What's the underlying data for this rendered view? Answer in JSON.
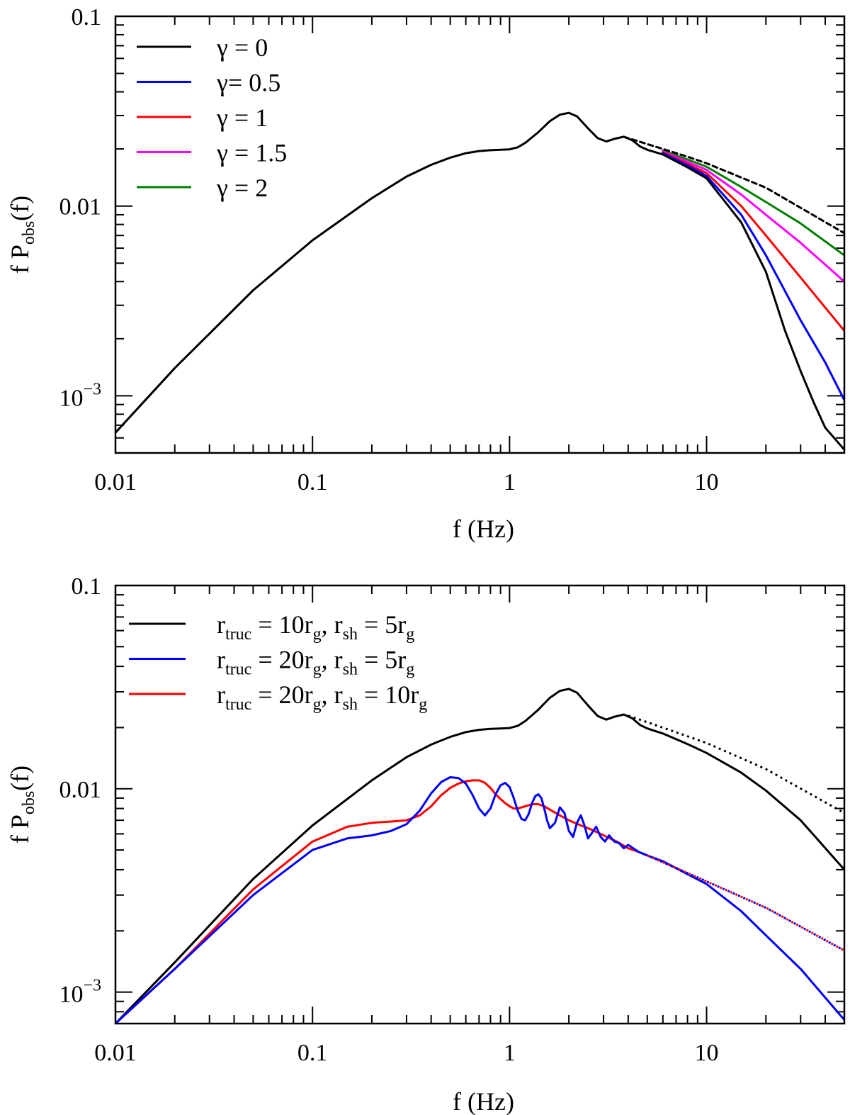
{
  "colors": {
    "black": "#000000",
    "blue": "#0000ff",
    "red": "#ff0000",
    "magenta": "#ff00ff",
    "green": "#008000",
    "blue_red": "#0000ff/#ff0000"
  },
  "chart_data": [
    {
      "type": "line",
      "title": "",
      "xscale": "log",
      "yscale": "log",
      "xlabel": "f (Hz)",
      "ylabel": "f P(f)",
      "ylabel_sub": "obs",
      "xlim": [
        0.01,
        50
      ],
      "ylim": [
        0.0005,
        0.1
      ],
      "xticks": [
        {
          "value": 0.01,
          "label": "0.01"
        },
        {
          "value": 0.1,
          "label": "0.1"
        },
        {
          "value": 1,
          "label": "1"
        },
        {
          "value": 10,
          "label": "10"
        }
      ],
      "yticks": [
        {
          "value": 0.001,
          "base": "10",
          "exp": "−3"
        },
        {
          "value": 0.01,
          "label": "0.01"
        },
        {
          "value": 0.1,
          "label": "0.1"
        }
      ],
      "legend_position": "top-left",
      "legend": [
        {
          "text": "γ = 0",
          "color": "#000000"
        },
        {
          "text": "γ= 0.5",
          "color": "#0000ff"
        },
        {
          "text": "γ = 1",
          "color": "#ff0000"
        },
        {
          "text": "γ = 1.5",
          "color": "#ff00ff"
        },
        {
          "text": "γ = 2",
          "color": "#008000"
        }
      ],
      "series": [
        {
          "name": "γ = 2",
          "color": "#008000",
          "dash": "solid",
          "x": [
            6,
            8,
            10,
            15,
            20,
            30,
            50
          ],
          "y": [
            0.0196,
            0.0176,
            0.0161,
            0.0126,
            0.0105,
            0.0081,
            0.0055
          ]
        },
        {
          "name": "γ = 1.5",
          "color": "#ff00ff",
          "dash": "solid",
          "x": [
            6,
            8,
            10,
            15,
            20,
            30,
            50
          ],
          "y": [
            0.0194,
            0.0171,
            0.0155,
            0.0115,
            0.009,
            0.0064,
            0.004
          ]
        },
        {
          "name": "γ = 1",
          "color": "#ff0000",
          "dash": "solid",
          "x": [
            6,
            8,
            10,
            15,
            20,
            30,
            50
          ],
          "y": [
            0.0192,
            0.0167,
            0.0149,
            0.01,
            0.007,
            0.0042,
            0.0022
          ]
        },
        {
          "name": "γ= 0.5",
          "color": "#0000ff",
          "dash": "solid",
          "x": [
            6,
            8,
            10,
            15,
            20,
            30,
            40,
            50
          ],
          "y": [
            0.019,
            0.0164,
            0.0144,
            0.009,
            0.0055,
            0.0025,
            0.0015,
            0.00095
          ]
        },
        {
          "name": "reference (dashed)",
          "color": "#000000",
          "dash": "dashed",
          "x": [
            3.8,
            5,
            6,
            8,
            10,
            20,
            50
          ],
          "y": [
            0.0232,
            0.0212,
            0.02,
            0.0182,
            0.0168,
            0.0125,
            0.0072
          ]
        },
        {
          "name": "γ = 0",
          "color": "#000000",
          "dash": "solid",
          "x": [
            0.01,
            0.02,
            0.05,
            0.1,
            0.2,
            0.3,
            0.4,
            0.5,
            0.6,
            0.7,
            0.8,
            0.9,
            1.0,
            1.1,
            1.2,
            1.4,
            1.6,
            1.8,
            2.0,
            2.2,
            2.5,
            2.8,
            3.1,
            3.4,
            3.8,
            4.2,
            4.6,
            5.0,
            6,
            8,
            10,
            15,
            20,
            25,
            30,
            35,
            40,
            50
          ],
          "y": [
            0.00064,
            0.0014,
            0.0036,
            0.0066,
            0.011,
            0.0143,
            0.0165,
            0.018,
            0.019,
            0.0195,
            0.0197,
            0.0198,
            0.0199,
            0.0204,
            0.0215,
            0.0245,
            0.028,
            0.0303,
            0.031,
            0.0297,
            0.0257,
            0.0228,
            0.0219,
            0.0226,
            0.0232,
            0.0222,
            0.0206,
            0.0198,
            0.0187,
            0.016,
            0.014,
            0.0082,
            0.0045,
            0.0022,
            0.00135,
            0.00092,
            0.00068,
            0.00052
          ]
        }
      ]
    },
    {
      "type": "line",
      "title": "",
      "xscale": "log",
      "yscale": "log",
      "xlabel": "f (Hz)",
      "ylabel": "f P(f)",
      "ylabel_sub": "obs",
      "xlim": [
        0.01,
        50
      ],
      "ylim": [
        0.0007,
        0.1
      ],
      "xticks": [
        {
          "value": 0.01,
          "label": "0.01"
        },
        {
          "value": 0.1,
          "label": "0.1"
        },
        {
          "value": 1,
          "label": "1"
        },
        {
          "value": 10,
          "label": "10"
        }
      ],
      "yticks": [
        {
          "value": 0.001,
          "base": "10",
          "exp": "−3"
        },
        {
          "value": 0.01,
          "label": "0.01"
        },
        {
          "value": 0.1,
          "label": "0.1"
        }
      ],
      "legend_position": "top-left",
      "legend": [
        {
          "color": "#000000",
          "parts": [
            {
              "t": "r"
            },
            {
              "t": "truc",
              "sub": true
            },
            {
              "t": " = 10r"
            },
            {
              "t": "g",
              "sub": true
            },
            {
              "t": ", r"
            },
            {
              "t": "sh",
              "sub": true
            },
            {
              "t": " = 5r"
            },
            {
              "t": "g",
              "sub": true
            }
          ]
        },
        {
          "color": "#0000ff",
          "parts": [
            {
              "t": "r"
            },
            {
              "t": "truc",
              "sub": true
            },
            {
              "t": " = 20r"
            },
            {
              "t": "g",
              "sub": true
            },
            {
              "t": ", r"
            },
            {
              "t": "sh",
              "sub": true
            },
            {
              "t": " = 5r"
            },
            {
              "t": "g",
              "sub": true
            }
          ]
        },
        {
          "color": "#ff0000",
          "parts": [
            {
              "t": "r"
            },
            {
              "t": "truc",
              "sub": true
            },
            {
              "t": " = 20r"
            },
            {
              "t": "g",
              "sub": true
            },
            {
              "t": ", r"
            },
            {
              "t": "sh",
              "sub": true
            },
            {
              "t": " = 10r"
            },
            {
              "t": "g",
              "sub": true
            }
          ]
        }
      ],
      "series": [
        {
          "name": "rtruc = 10rg, rsh = 5rg",
          "color": "#000000",
          "dash": "solid",
          "x": [
            0.01,
            0.02,
            0.05,
            0.1,
            0.2,
            0.3,
            0.4,
            0.5,
            0.6,
            0.7,
            0.8,
            0.9,
            1.0,
            1.1,
            1.2,
            1.4,
            1.6,
            1.8,
            2.0,
            2.2,
            2.5,
            2.8,
            3.1,
            3.4,
            3.8,
            4.2,
            4.6,
            5.0,
            6,
            8,
            10,
            15,
            20,
            30,
            50
          ],
          "y": [
            0.0007,
            0.0014,
            0.0036,
            0.0066,
            0.011,
            0.0143,
            0.0165,
            0.018,
            0.019,
            0.0195,
            0.0197,
            0.0198,
            0.0199,
            0.0204,
            0.0215,
            0.0245,
            0.028,
            0.0303,
            0.031,
            0.0297,
            0.0257,
            0.0228,
            0.0219,
            0.0226,
            0.0232,
            0.0222,
            0.0206,
            0.0198,
            0.0187,
            0.0166,
            0.015,
            0.012,
            0.0098,
            0.007,
            0.004
          ]
        },
        {
          "name": "black dotted extension",
          "color": "#000000",
          "dash": "dotted",
          "x": [
            4,
            6,
            10,
            20,
            50
          ],
          "y": [
            0.0229,
            0.02,
            0.0168,
            0.0125,
            0.0076
          ]
        },
        {
          "name": "rtruc = 20rg, rsh = 10rg",
          "color": "#ff0000",
          "dash": "solid",
          "x": [
            0.01,
            0.02,
            0.05,
            0.1,
            0.15,
            0.2,
            0.25,
            0.3,
            0.35,
            0.4,
            0.45,
            0.5,
            0.55,
            0.6,
            0.65,
            0.7,
            0.75,
            0.8,
            0.85,
            0.9,
            0.95,
            1.0,
            1.05,
            1.1,
            1.2,
            1.3,
            1.4,
            1.5,
            1.6,
            1.8,
            2.0,
            2.3,
            2.6,
            3.0,
            3.5,
            4.0,
            4.5,
            5.0
          ],
          "y": [
            0.0007,
            0.0013,
            0.0032,
            0.0055,
            0.0065,
            0.0068,
            0.0069,
            0.007,
            0.0074,
            0.0082,
            0.0093,
            0.0101,
            0.0106,
            0.0109,
            0.011,
            0.011,
            0.0107,
            0.0101,
            0.0094,
            0.0089,
            0.0085,
            0.0082,
            0.008,
            0.008,
            0.0082,
            0.0084,
            0.0084,
            0.0082,
            0.0079,
            0.0074,
            0.007,
            0.0066,
            0.0063,
            0.0059,
            0.0055,
            0.0051,
            0.0049,
            0.0047
          ]
        },
        {
          "name": "rtruc = 20rg, rsh = 5rg",
          "color": "#0000ff",
          "dash": "solid",
          "x": [
            0.01,
            0.02,
            0.05,
            0.1,
            0.15,
            0.2,
            0.25,
            0.3,
            0.35,
            0.4,
            0.45,
            0.5,
            0.55,
            0.6,
            0.65,
            0.7,
            0.75,
            0.8,
            0.85,
            0.9,
            0.95,
            1.0,
            1.05,
            1.1,
            1.15,
            1.2,
            1.25,
            1.3,
            1.35,
            1.4,
            1.45,
            1.5,
            1.55,
            1.6,
            1.7,
            1.8,
            1.9,
            2.0,
            2.1,
            2.2,
            2.3,
            2.4,
            2.5,
            2.6,
            2.75,
            2.9,
            3.05,
            3.2,
            3.4,
            3.6,
            3.8,
            4.0,
            4.5,
            5,
            6,
            8,
            10,
            15,
            20,
            30,
            50
          ],
          "y": [
            0.0007,
            0.0013,
            0.003,
            0.005,
            0.0057,
            0.0059,
            0.0062,
            0.0067,
            0.0078,
            0.0095,
            0.0108,
            0.0114,
            0.0113,
            0.0106,
            0.0093,
            0.008,
            0.0074,
            0.008,
            0.0094,
            0.0104,
            0.0107,
            0.0102,
            0.009,
            0.0078,
            0.0071,
            0.007,
            0.0075,
            0.0085,
            0.0092,
            0.0094,
            0.009,
            0.008,
            0.007,
            0.0064,
            0.0068,
            0.0081,
            0.0076,
            0.0062,
            0.0058,
            0.0068,
            0.0074,
            0.0066,
            0.0057,
            0.006,
            0.0065,
            0.0058,
            0.0055,
            0.0059,
            0.0055,
            0.0054,
            0.0051,
            0.0053,
            0.0049,
            0.0047,
            0.0044,
            0.0038,
            0.0034,
            0.0025,
            0.0019,
            0.0013,
            0.00073
          ]
        },
        {
          "name": "red/blue dotted extension",
          "color": "#0000ff/#ff0000",
          "dash": "dotted-bicolor",
          "x": [
            5,
            10,
            20,
            50
          ],
          "y": [
            0.0047,
            0.0035,
            0.0026,
            0.0016
          ]
        }
      ]
    }
  ]
}
